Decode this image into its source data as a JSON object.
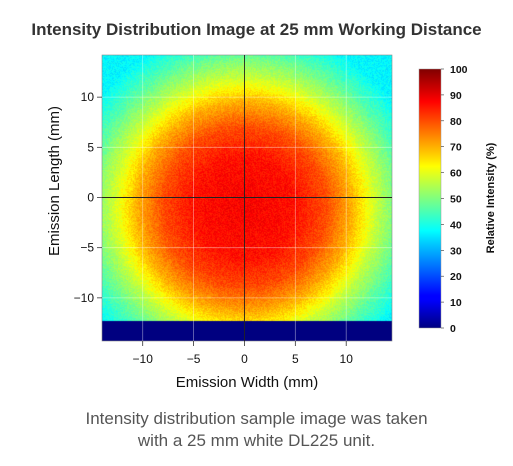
{
  "chart_data": {
    "type": "heatmap",
    "title": "Intensity Distribution Image at 25 mm Working Distance",
    "xlabel": "Emission Width (mm)",
    "ylabel": "Emission Length (mm)",
    "xlim": [
      -14,
      14.5
    ],
    "ylim": [
      -14.3,
      14.2
    ],
    "xticks": [
      -10,
      -5,
      0,
      5,
      10
    ],
    "yticks": [
      -10,
      -5,
      0,
      5,
      10
    ],
    "grid": true,
    "colormap": "jet",
    "colorbar": {
      "label": "Relative Intensity (%)",
      "range": [
        0,
        100
      ],
      "ticks": [
        0,
        10,
        20,
        30,
        40,
        50,
        60,
        70,
        80,
        90,
        100
      ]
    },
    "intensity_profile": {
      "center_x": 0,
      "center_y": -1,
      "peak_percent": 88,
      "percent_at_radius": [
        {
          "radius_mm": 0,
          "percent": 88
        },
        {
          "radius_mm": 5,
          "percent": 86
        },
        {
          "radius_mm": 8,
          "percent": 80
        },
        {
          "radius_mm": 10.5,
          "percent": 70
        },
        {
          "radius_mm": 13,
          "percent": 57
        },
        {
          "radius_mm": 15.5,
          "percent": 46
        },
        {
          "radius_mm": 18,
          "percent": 37
        }
      ],
      "no_signal_below_y_mm": -12.3
    }
  },
  "caption": {
    "line1": "Intensity distribution sample image was taken",
    "line2": "with a 25 mm white DL225 unit."
  }
}
